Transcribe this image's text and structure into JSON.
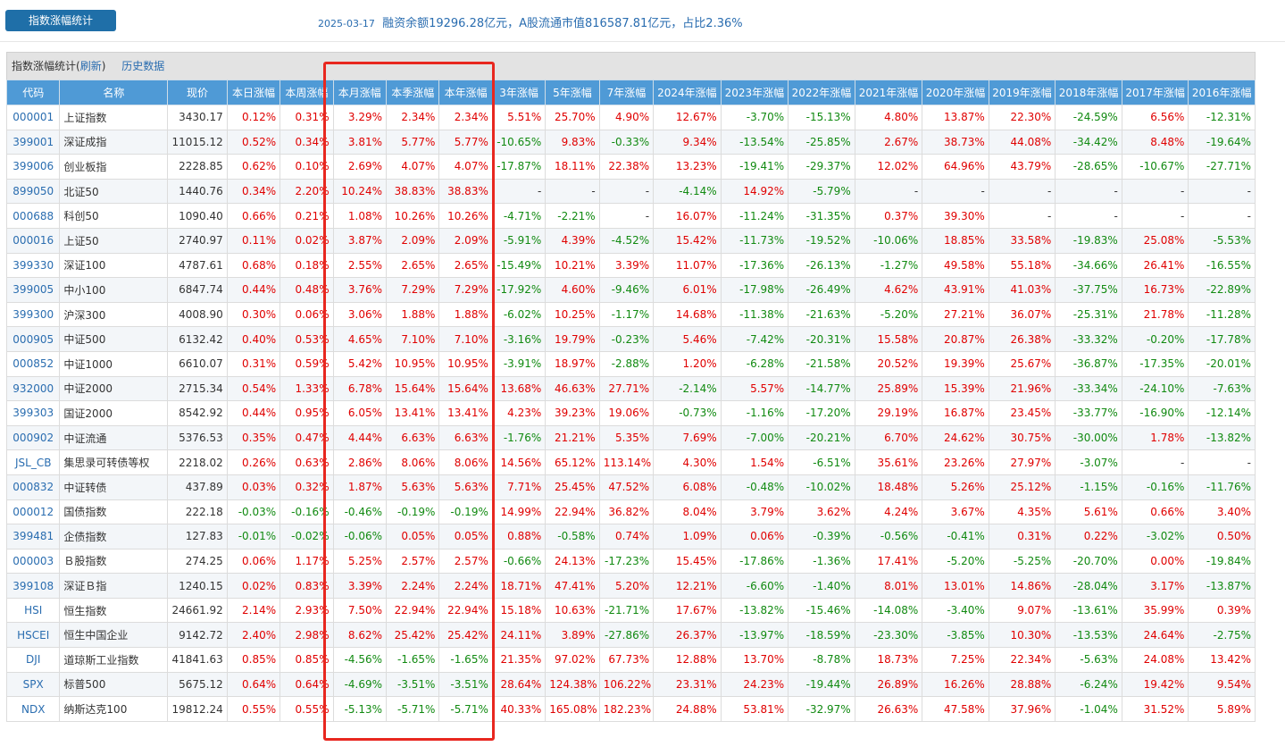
{
  "header": {
    "tab_label": "指数涨幅统计",
    "date": "2025-03-17",
    "summary": "融资余额19296.28亿元，A股流通市值816587.81亿元，占比2.36%"
  },
  "panel": {
    "title": "指数涨幅统计(",
    "refresh_label": "刷新",
    "title_close": ")",
    "history_label": "历史数据"
  },
  "columns": [
    "代码",
    "名称",
    "现价",
    "本日涨幅",
    "本周涨幅",
    "本月涨幅",
    "本季涨幅",
    "本年涨幅",
    "3年涨幅",
    "5年涨幅",
    "7年涨幅",
    "2024年涨幅",
    "2023年涨幅",
    "2022年涨幅",
    "2021年涨幅",
    "2020年涨幅",
    "2019年涨幅",
    "2018年涨幅",
    "2017年涨幅",
    "2016年涨幅"
  ],
  "rows": [
    [
      "000001",
      "上证指数",
      "3430.17",
      "0.12%",
      "0.31%",
      "3.29%",
      "2.34%",
      "2.34%",
      "5.51%",
      "25.70%",
      "4.90%",
      "12.67%",
      "-3.70%",
      "-15.13%",
      "4.80%",
      "13.87%",
      "22.30%",
      "-24.59%",
      "6.56%",
      "-12.31%"
    ],
    [
      "399001",
      "深证成指",
      "11015.12",
      "0.52%",
      "0.34%",
      "3.81%",
      "5.77%",
      "5.77%",
      "-10.65%",
      "9.83%",
      "-0.33%",
      "9.34%",
      "-13.54%",
      "-25.85%",
      "2.67%",
      "38.73%",
      "44.08%",
      "-34.42%",
      "8.48%",
      "-19.64%"
    ],
    [
      "399006",
      "创业板指",
      "2228.85",
      "0.62%",
      "0.10%",
      "2.69%",
      "4.07%",
      "4.07%",
      "-17.87%",
      "18.11%",
      "22.38%",
      "13.23%",
      "-19.41%",
      "-29.37%",
      "12.02%",
      "64.96%",
      "43.79%",
      "-28.65%",
      "-10.67%",
      "-27.71%"
    ],
    [
      "899050",
      "北证50",
      "1440.76",
      "0.34%",
      "2.20%",
      "10.24%",
      "38.83%",
      "38.83%",
      "-",
      "-",
      "-",
      "-4.14%",
      "14.92%",
      "-5.79%",
      "-",
      "-",
      "-",
      "-",
      "-",
      "-"
    ],
    [
      "000688",
      "科创50",
      "1090.40",
      "0.66%",
      "0.21%",
      "1.08%",
      "10.26%",
      "10.26%",
      "-4.71%",
      "-2.21%",
      "-",
      "16.07%",
      "-11.24%",
      "-31.35%",
      "0.37%",
      "39.30%",
      "-",
      "-",
      "-",
      "-"
    ],
    [
      "000016",
      "上证50",
      "2740.97",
      "0.11%",
      "0.02%",
      "3.87%",
      "2.09%",
      "2.09%",
      "-5.91%",
      "4.39%",
      "-4.52%",
      "15.42%",
      "-11.73%",
      "-19.52%",
      "-10.06%",
      "18.85%",
      "33.58%",
      "-19.83%",
      "25.08%",
      "-5.53%"
    ],
    [
      "399330",
      "深证100",
      "4787.61",
      "0.68%",
      "0.18%",
      "2.55%",
      "2.65%",
      "2.65%",
      "-15.49%",
      "10.21%",
      "3.39%",
      "11.07%",
      "-17.36%",
      "-26.13%",
      "-1.27%",
      "49.58%",
      "55.18%",
      "-34.66%",
      "26.41%",
      "-16.55%"
    ],
    [
      "399005",
      "中小100",
      "6847.74",
      "0.44%",
      "0.48%",
      "3.76%",
      "7.29%",
      "7.29%",
      "-17.92%",
      "4.60%",
      "-9.46%",
      "6.01%",
      "-17.98%",
      "-26.49%",
      "4.62%",
      "43.91%",
      "41.03%",
      "-37.75%",
      "16.73%",
      "-22.89%"
    ],
    [
      "399300",
      "沪深300",
      "4008.90",
      "0.30%",
      "0.06%",
      "3.06%",
      "1.88%",
      "1.88%",
      "-6.02%",
      "10.25%",
      "-1.17%",
      "14.68%",
      "-11.38%",
      "-21.63%",
      "-5.20%",
      "27.21%",
      "36.07%",
      "-25.31%",
      "21.78%",
      "-11.28%"
    ],
    [
      "000905",
      "中证500",
      "6132.42",
      "0.40%",
      "0.53%",
      "4.65%",
      "7.10%",
      "7.10%",
      "-3.16%",
      "19.79%",
      "-0.23%",
      "5.46%",
      "-7.42%",
      "-20.31%",
      "15.58%",
      "20.87%",
      "26.38%",
      "-33.32%",
      "-0.20%",
      "-17.78%"
    ],
    [
      "000852",
      "中证1000",
      "6610.07",
      "0.31%",
      "0.59%",
      "5.42%",
      "10.95%",
      "10.95%",
      "-3.91%",
      "18.97%",
      "-2.88%",
      "1.20%",
      "-6.28%",
      "-21.58%",
      "20.52%",
      "19.39%",
      "25.67%",
      "-36.87%",
      "-17.35%",
      "-20.01%"
    ],
    [
      "932000",
      "中证2000",
      "2715.34",
      "0.54%",
      "1.33%",
      "6.78%",
      "15.64%",
      "15.64%",
      "13.68%",
      "46.63%",
      "27.71%",
      "-2.14%",
      "5.57%",
      "-14.77%",
      "25.89%",
      "15.39%",
      "21.96%",
      "-33.34%",
      "-24.10%",
      "-7.63%"
    ],
    [
      "399303",
      "国证2000",
      "8542.92",
      "0.44%",
      "0.95%",
      "6.05%",
      "13.41%",
      "13.41%",
      "4.23%",
      "39.23%",
      "19.06%",
      "-0.73%",
      "-1.16%",
      "-17.20%",
      "29.19%",
      "16.87%",
      "23.45%",
      "-33.77%",
      "-16.90%",
      "-12.14%"
    ],
    [
      "000902",
      "中证流通",
      "5376.53",
      "0.35%",
      "0.47%",
      "4.44%",
      "6.63%",
      "6.63%",
      "-1.76%",
      "21.21%",
      "5.35%",
      "7.69%",
      "-7.00%",
      "-20.21%",
      "6.70%",
      "24.62%",
      "30.75%",
      "-30.00%",
      "1.78%",
      "-13.82%"
    ],
    [
      "JSL_CB",
      "集思录可转债等权",
      "2218.02",
      "0.26%",
      "0.63%",
      "2.86%",
      "8.06%",
      "8.06%",
      "14.56%",
      "65.12%",
      "113.14%",
      "4.30%",
      "1.54%",
      "-6.51%",
      "35.61%",
      "23.26%",
      "27.97%",
      "-3.07%",
      "-",
      "-"
    ],
    [
      "000832",
      "中证转债",
      "437.89",
      "0.03%",
      "0.32%",
      "1.87%",
      "5.63%",
      "5.63%",
      "7.71%",
      "25.45%",
      "47.52%",
      "6.08%",
      "-0.48%",
      "-10.02%",
      "18.48%",
      "5.26%",
      "25.12%",
      "-1.15%",
      "-0.16%",
      "-11.76%"
    ],
    [
      "000012",
      "国债指数",
      "222.18",
      "-0.03%",
      "-0.16%",
      "-0.46%",
      "-0.19%",
      "-0.19%",
      "14.99%",
      "22.94%",
      "36.82%",
      "8.04%",
      "3.79%",
      "3.62%",
      "4.24%",
      "3.67%",
      "4.35%",
      "5.61%",
      "0.66%",
      "3.40%"
    ],
    [
      "399481",
      "企债指数",
      "127.83",
      "-0.01%",
      "-0.02%",
      "-0.06%",
      "0.05%",
      "0.05%",
      "0.88%",
      "-0.58%",
      "0.74%",
      "1.09%",
      "0.06%",
      "-0.39%",
      "-0.56%",
      "-0.41%",
      "0.31%",
      "0.22%",
      "-3.02%",
      "0.50%"
    ],
    [
      "000003",
      "Ｂ股指数",
      "274.25",
      "0.06%",
      "1.17%",
      "5.25%",
      "2.57%",
      "2.57%",
      "-0.66%",
      "24.13%",
      "-17.23%",
      "15.45%",
      "-17.86%",
      "-1.36%",
      "17.41%",
      "-5.20%",
      "-5.25%",
      "-20.70%",
      "0.00%",
      "-19.84%"
    ],
    [
      "399108",
      "深证Ｂ指",
      "1240.15",
      "0.02%",
      "0.83%",
      "3.39%",
      "2.24%",
      "2.24%",
      "18.71%",
      "47.41%",
      "5.20%",
      "12.21%",
      "-6.60%",
      "-1.40%",
      "8.01%",
      "13.01%",
      "14.86%",
      "-28.04%",
      "3.17%",
      "-13.87%"
    ],
    [
      "HSI",
      "恒生指数",
      "24661.92",
      "2.14%",
      "2.93%",
      "7.50%",
      "22.94%",
      "22.94%",
      "15.18%",
      "10.63%",
      "-21.71%",
      "17.67%",
      "-13.82%",
      "-15.46%",
      "-14.08%",
      "-3.40%",
      "9.07%",
      "-13.61%",
      "35.99%",
      "0.39%"
    ],
    [
      "HSCEI",
      "恒生中国企业",
      "9142.72",
      "2.40%",
      "2.98%",
      "8.62%",
      "25.42%",
      "25.42%",
      "24.11%",
      "3.89%",
      "-27.86%",
      "26.37%",
      "-13.97%",
      "-18.59%",
      "-23.30%",
      "-3.85%",
      "10.30%",
      "-13.53%",
      "24.64%",
      "-2.75%"
    ],
    [
      "DJI",
      "道琼斯工业指数",
      "41841.63",
      "0.85%",
      "0.85%",
      "-4.56%",
      "-1.65%",
      "-1.65%",
      "21.35%",
      "97.02%",
      "67.73%",
      "12.88%",
      "13.70%",
      "-8.78%",
      "18.73%",
      "7.25%",
      "22.34%",
      "-5.63%",
      "24.08%",
      "13.42%"
    ],
    [
      "SPX",
      "标普500",
      "5675.12",
      "0.64%",
      "0.64%",
      "-4.69%",
      "-3.51%",
      "-3.51%",
      "28.64%",
      "124.38%",
      "106.22%",
      "23.31%",
      "24.23%",
      "-19.44%",
      "26.89%",
      "16.26%",
      "28.88%",
      "-6.24%",
      "19.42%",
      "9.54%"
    ],
    [
      "NDX",
      "纳斯达克100",
      "19812.24",
      "0.55%",
      "0.55%",
      "-5.13%",
      "-5.71%",
      "-5.71%",
      "40.33%",
      "165.08%",
      "182.23%",
      "24.88%",
      "53.81%",
      "-32.97%",
      "26.63%",
      "47.58%",
      "37.96%",
      "-1.04%",
      "31.52%",
      "5.89%"
    ]
  ],
  "colors": {
    "up": "#e00000",
    "down": "#118a11",
    "header": "#4f9ad6",
    "highlight": "#e8271f"
  }
}
